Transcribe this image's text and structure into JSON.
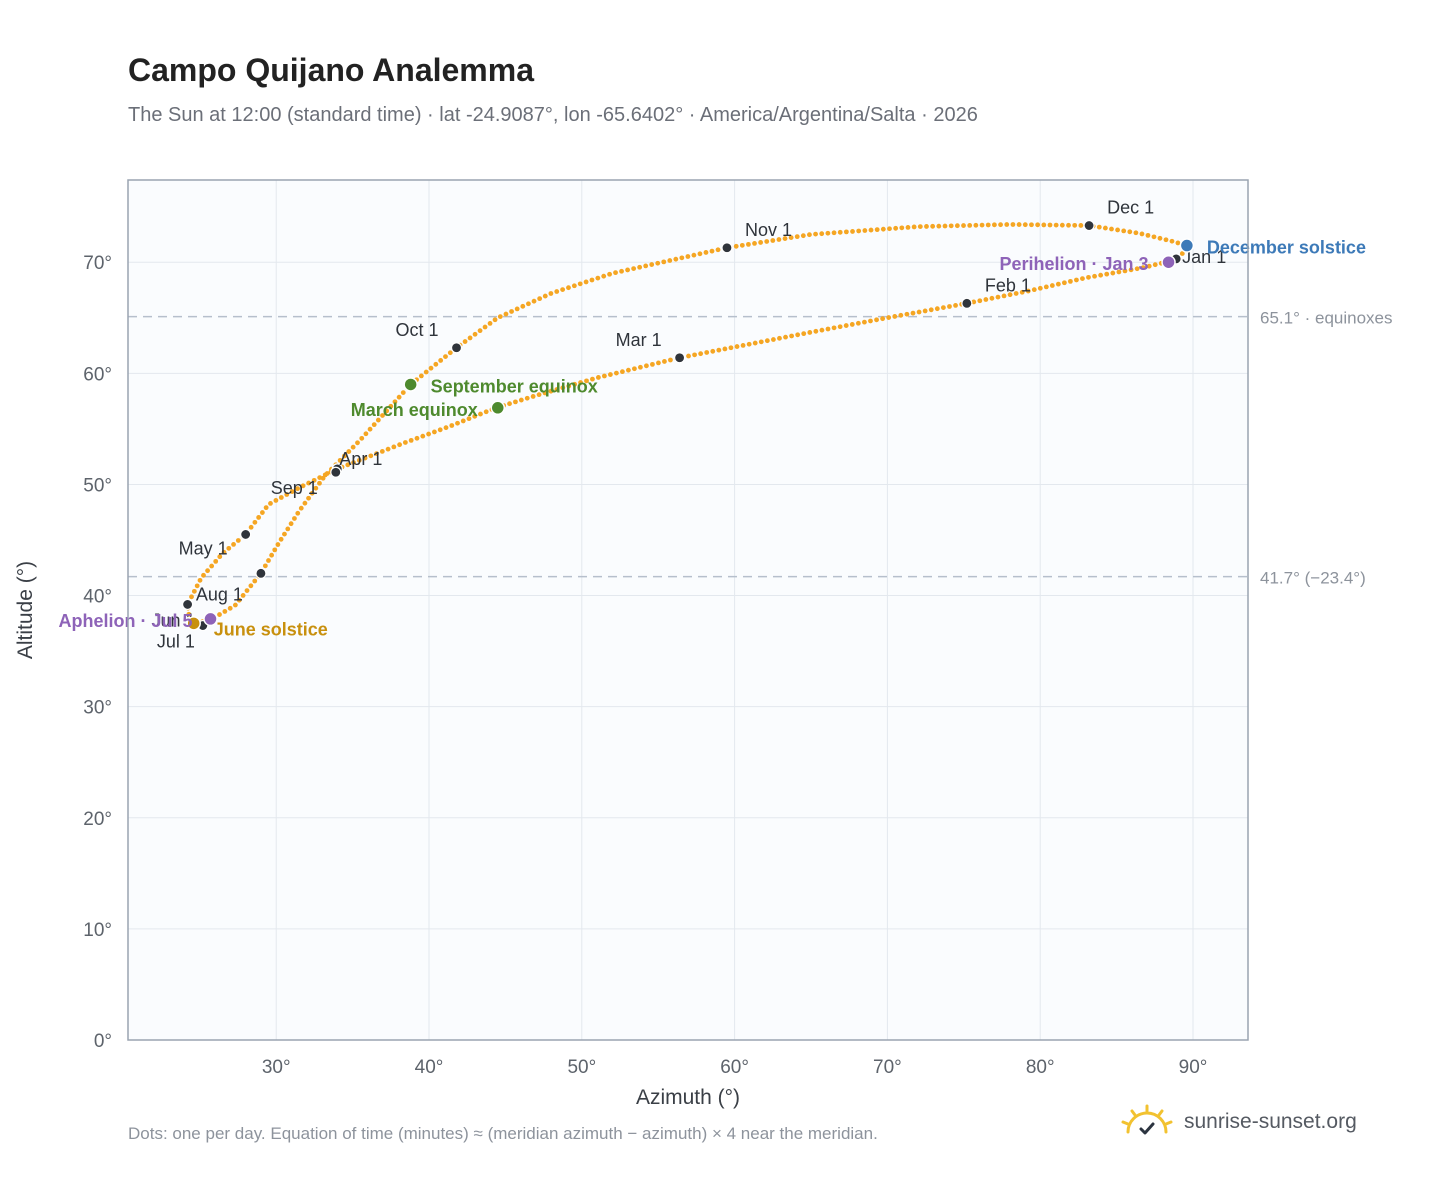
{
  "title": "Campo Quijano Analemma",
  "subtitle": "The Sun at 12:00 (standard time) · lat -24.9087°, lon -65.6402° · America/Argentina/Salta · 2026",
  "footnote": "Dots: one per day. Equation of time (minutes) ≈ (meridian azimuth − azimuth) × 4 near the meridian.",
  "brand": {
    "name": "sunrise-sunset.org",
    "icon": "sun-check-icon",
    "icon_color": "#f2c230"
  },
  "colors": {
    "path": "#f5a623",
    "month": "#2f343b",
    "equinox": "#4e8a2e",
    "june": "#c8900e",
    "december": "#3d7ab8",
    "apsis": "#8e63b8",
    "refline": "#b6bfcc"
  },
  "chart_data": {
    "type": "scatter",
    "xlabel": "Azimuth (°)",
    "ylabel": "Altitude (°)",
    "xlim": [
      20.3,
      93.6
    ],
    "ylim": [
      0,
      77.4
    ],
    "x_ticks": [
      30,
      40,
      50,
      60,
      70,
      80,
      90
    ],
    "x_tick_labels": [
      "30°",
      "40°",
      "50°",
      "60°",
      "70°",
      "80°",
      "90°"
    ],
    "y_ticks": [
      0,
      10,
      20,
      30,
      40,
      50,
      60,
      70
    ],
    "y_tick_labels": [
      "0°",
      "10°",
      "20°",
      "30°",
      "40°",
      "50°",
      "60°",
      "70°"
    ],
    "grid": true,
    "reference_lines": [
      {
        "y": 65.1,
        "label": "65.1° · equinoxes"
      },
      {
        "y": 41.7,
        "label": "41.7° (−23.4°)"
      }
    ],
    "path_points": [
      [
        89.1,
        70.3
      ],
      [
        86.7,
        69.5
      ],
      [
        83.0,
        68.6
      ],
      [
        79.2,
        67.4
      ],
      [
        75.2,
        66.3
      ],
      [
        70.0,
        65.0
      ],
      [
        65.0,
        63.7
      ],
      [
        60.5,
        62.5
      ],
      [
        56.4,
        61.4
      ],
      [
        51.0,
        59.6
      ],
      [
        47.0,
        58.0
      ],
      [
        44.4,
        56.9
      ],
      [
        41.3,
        55.2
      ],
      [
        38.3,
        53.7
      ],
      [
        34.0,
        51.4
      ],
      [
        31.5,
        49.7
      ],
      [
        29.5,
        48.2
      ],
      [
        28.0,
        45.5
      ],
      [
        26.5,
        43.8
      ],
      [
        25.1,
        41.6
      ],
      [
        24.2,
        39.2
      ],
      [
        24.3,
        38.1
      ],
      [
        24.8,
        37.5
      ],
      [
        25.8,
        37.9
      ],
      [
        27.3,
        39.1
      ],
      [
        29.0,
        42.0
      ],
      [
        30.2,
        44.8
      ],
      [
        31.5,
        47.6
      ],
      [
        33.2,
        50.8
      ],
      [
        35.5,
        54.0
      ],
      [
        38.8,
        59.0
      ],
      [
        41.8,
        62.3
      ],
      [
        44.5,
        65.0
      ],
      [
        48.0,
        67.2
      ],
      [
        52.0,
        69.0
      ],
      [
        59.5,
        71.3
      ],
      [
        65.0,
        72.5
      ],
      [
        72.0,
        73.2
      ],
      [
        78.0,
        73.4
      ],
      [
        83.2,
        73.3
      ],
      [
        86.5,
        72.6
      ],
      [
        88.6,
        71.9
      ],
      [
        89.6,
        71.5
      ],
      [
        89.1,
        70.3
      ]
    ],
    "month_markers": [
      {
        "label": "Jan 1",
        "x": 88.9,
        "y": 70.3
      },
      {
        "label": "Feb 1",
        "x": 75.2,
        "y": 66.3
      },
      {
        "label": "Mar 1",
        "x": 56.4,
        "y": 61.4
      },
      {
        "label": "Apr 1",
        "x": 34.0,
        "y": 51.4
      },
      {
        "label": "May 1",
        "x": 28.0,
        "y": 45.5
      },
      {
        "label": "Jun 1",
        "x": 24.2,
        "y": 39.2
      },
      {
        "label": "Jul 1",
        "x": 25.2,
        "y": 37.3
      },
      {
        "label": "Aug 1",
        "x": 29.0,
        "y": 42.0
      },
      {
        "label": "Sep 1",
        "x": 33.9,
        "y": 51.1
      },
      {
        "label": "Oct 1",
        "x": 41.8,
        "y": 62.3
      },
      {
        "label": "Nov 1",
        "x": 59.5,
        "y": 71.3
      },
      {
        "label": "Dec 1",
        "x": 83.2,
        "y": 73.3
      }
    ],
    "events": [
      {
        "label": "March equinox",
        "x": 44.5,
        "y": 56.9,
        "kind": "equinox"
      },
      {
        "label": "September equinox",
        "x": 38.8,
        "y": 59.0,
        "kind": "equinox"
      },
      {
        "label": "June solstice",
        "x": 24.6,
        "y": 37.5,
        "kind": "june"
      },
      {
        "label": "December solstice",
        "x": 89.6,
        "y": 71.5,
        "kind": "december"
      },
      {
        "label": "Perihelion · Jan 3",
        "x": 88.4,
        "y": 70.0,
        "kind": "apsis"
      },
      {
        "label": "Aphelion · Jul 5",
        "x": 25.7,
        "y": 37.9,
        "kind": "apsis"
      }
    ]
  }
}
